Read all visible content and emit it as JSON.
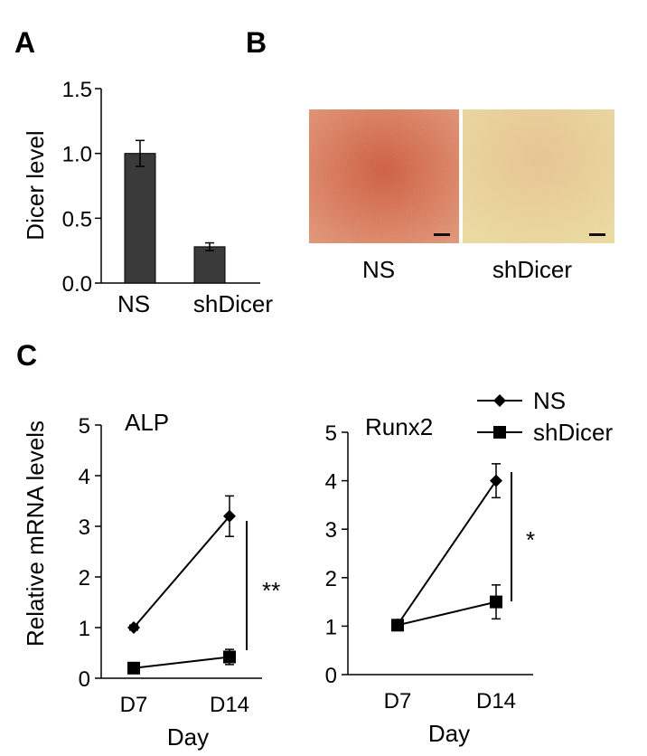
{
  "panels": {
    "a": "A",
    "b": "B",
    "c": "C"
  },
  "micro": {
    "labels": [
      "NS",
      "shDicer"
    ],
    "colors": {
      "ns": "#d97a5c",
      "sh": "#e8cf8c"
    }
  },
  "chart_data": [
    {
      "type": "bar",
      "categories": [
        "NS",
        "shDicer"
      ],
      "values": [
        1.0,
        0.28
      ],
      "errors": [
        0.1,
        0.03
      ],
      "ylabel": "Dicer level",
      "yticks": [
        "0.0",
        "0.5",
        "1.0",
        "1.5"
      ],
      "ylim": [
        0,
        1.5
      ],
      "bar_color": "#3a3a3a"
    },
    {
      "type": "line",
      "title": "ALP",
      "x": [
        "D7",
        "D14"
      ],
      "xlabel": "Day",
      "ylabel": "Relative mRNA levels",
      "yticks": [
        "0",
        "1",
        "2",
        "3",
        "4",
        "5"
      ],
      "ylim": [
        0,
        5
      ],
      "series": [
        {
          "name": "NS",
          "marker": "diamond",
          "values": [
            1.0,
            3.2
          ],
          "errors": [
            0.05,
            0.4
          ]
        },
        {
          "name": "shDicer",
          "marker": "square",
          "values": [
            0.2,
            0.42
          ],
          "errors": [
            0.05,
            0.15
          ]
        }
      ],
      "significance": "**"
    },
    {
      "type": "line",
      "title": "Runx2",
      "x": [
        "D7",
        "D14"
      ],
      "xlabel": "Day",
      "yticks": [
        "0",
        "1",
        "2",
        "3",
        "4",
        "5"
      ],
      "ylim": [
        0,
        5
      ],
      "series": [
        {
          "name": "NS",
          "marker": "diamond",
          "values": [
            1.03,
            4.0
          ],
          "errors": [
            0.08,
            0.35
          ]
        },
        {
          "name": "shDicer",
          "marker": "square",
          "values": [
            1.02,
            1.5
          ],
          "errors": [
            0.08,
            0.35
          ]
        }
      ],
      "significance": "*",
      "legend": "top-right"
    }
  ]
}
